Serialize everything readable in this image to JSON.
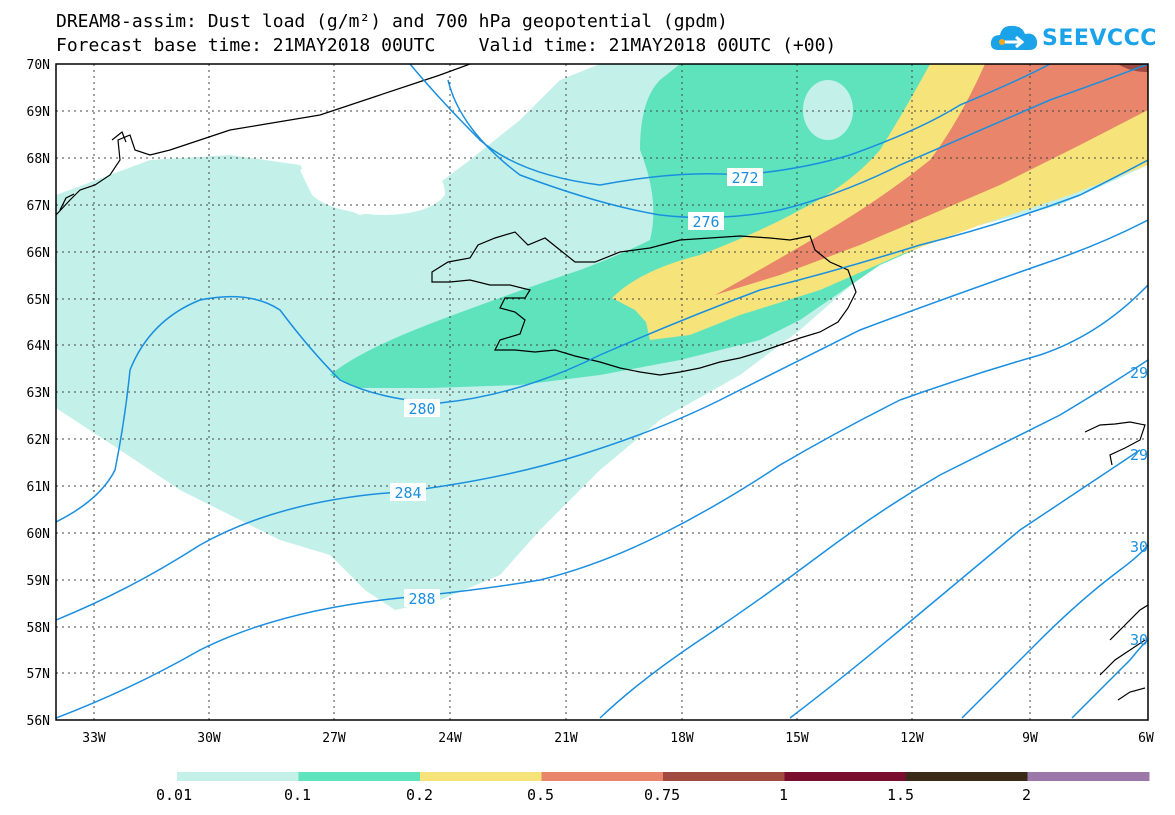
{
  "title_line1": "DREAM8-assim: Dust load (g/m²) and 700 hPa geopotential (gpdm)",
  "title_line2": "Forecast base time: 21MAY2018 00UTC    Valid time: 21MAY2018 00UTC (+00)",
  "logo": {
    "text": "SEEVCCC",
    "icon": "cloud-logo-icon",
    "color": "#1aa3e8"
  },
  "lat_labels": [
    "70N",
    "69N",
    "68N",
    "67N",
    "66N",
    "65N",
    "64N",
    "63N",
    "62N",
    "61N",
    "60N",
    "59N",
    "58N",
    "57N",
    "56N"
  ],
  "lon_labels": [
    "33W",
    "30W",
    "27W",
    "24W",
    "21W",
    "18W",
    "15W",
    "12W",
    "9W",
    "6W"
  ],
  "contour_labels": {
    "c272": "272",
    "c276": "276",
    "c280": "280",
    "c284": "284",
    "c288": "288",
    "edge1": "29",
    "edge2": "29",
    "edge3": "30",
    "edge4": "30"
  },
  "colorbar": {
    "labels": [
      "0.01",
      "0.1",
      "0.2",
      "0.5",
      "0.75",
      "1",
      "1.5",
      "2"
    ],
    "colors": [
      "#c3f1e9",
      "#5ee3bd",
      "#f6e47a",
      "#e8856a",
      "#a04a40",
      "#7a0e2e",
      "#3a2a18",
      "#9c78aa"
    ]
  },
  "colors": {
    "contour": "#1a8fe0",
    "coast": "#000000"
  }
}
